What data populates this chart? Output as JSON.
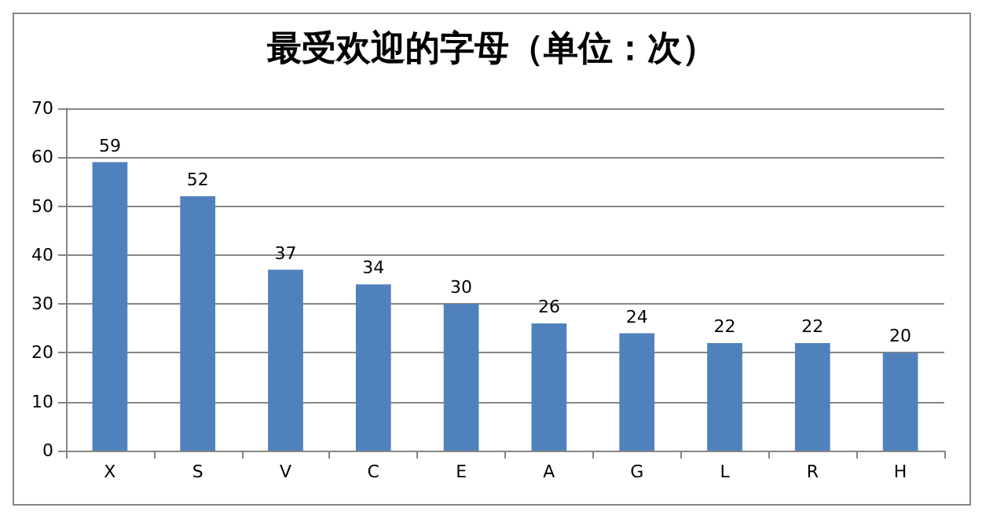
{
  "chart_data": {
    "type": "bar",
    "title": "最受欢迎的字母（单位：次）",
    "categories": [
      "X",
      "S",
      "V",
      "C",
      "E",
      "A",
      "G",
      "L",
      "R",
      "H"
    ],
    "values": [
      59,
      52,
      37,
      34,
      30,
      26,
      24,
      22,
      22,
      20
    ],
    "color": "#4f81bd",
    "ylim": [
      0,
      70
    ],
    "yticks": [
      0,
      10,
      20,
      30,
      40,
      50,
      60,
      70
    ],
    "grid": "y",
    "data_labels": true
  }
}
